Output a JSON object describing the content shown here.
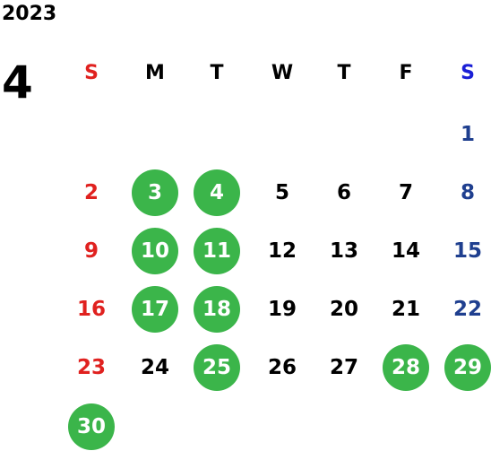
{
  "calendar": {
    "year": "2023",
    "month": "4",
    "weekdays": [
      "S",
      "M",
      "T",
      "W",
      "T",
      "F",
      "S"
    ],
    "first_weekday_index": 6,
    "days_in_month": 30,
    "highlighted_days": [
      3,
      4,
      10,
      11,
      17,
      18,
      25,
      28,
      29,
      30
    ],
    "colors": {
      "sunday": "#e0211f",
      "saturday_day": "#1f3f8f",
      "saturday_header": "#1a1fd6",
      "weekday": "#000000",
      "highlight_bg": "#3bb54a",
      "highlight_text": "#ffffff"
    }
  }
}
